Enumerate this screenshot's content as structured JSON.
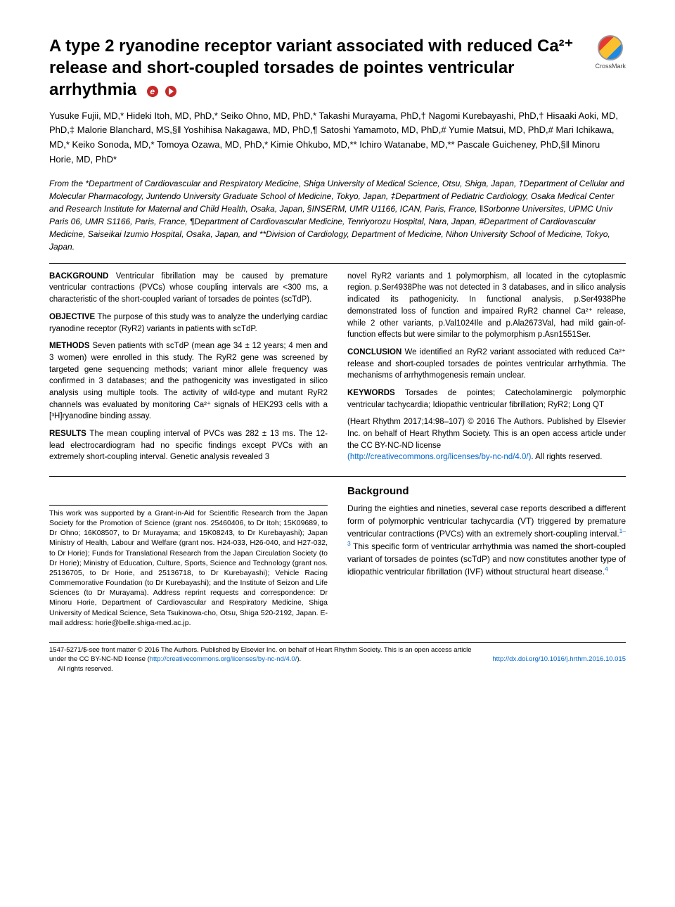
{
  "title": "A type 2 ryanodine receptor variant associated with reduced Ca²⁺ release and short-coupled torsades de pointes ventricular arrhythmia",
  "crossmark_label": "CrossMark",
  "authors_html": "Yusuke Fujii, MD,* Hideki Itoh, MD, PhD,* Seiko Ohno, MD, PhD,* Takashi Murayama, PhD,† Nagomi Kurebayashi, PhD,† Hisaaki Aoki, MD, PhD,‡ Malorie Blanchard, MS,§‖ Yoshihisa Nakagawa, MD, PhD,¶ Satoshi Yamamoto, MD, PhD,# Yumie Matsui, MD, PhD,# Mari Ichikawa, MD,* Keiko Sonoda, MD,* Tomoya Ozawa, MD, PhD,* Kimie Ohkubo, MD,** Ichiro Watanabe, MD,** Pascale Guicheney, PhD,§‖ Minoru Horie, MD, PhD*",
  "affiliations": "From the *Department of Cardiovascular and Respiratory Medicine, Shiga University of Medical Science, Otsu, Shiga, Japan, †Department of Cellular and Molecular Pharmacology, Juntendo University Graduate School of Medicine, Tokyo, Japan, ‡Department of Pediatric Cardiology, Osaka Medical Center and Research Institute for Maternal and Child Health, Osaka, Japan, §INSERM, UMR U1166, ICAN, Paris, France, ‖Sorbonne Universites, UPMC Univ Paris 06, UMR S1166, Paris, France, ¶Department of Cardiovascular Medicine, Tenriyorozu Hospital, Nara, Japan, #Department of Cardiovascular Medicine, Saiseikai Izumio Hospital, Osaka, Japan, and **Division of Cardiology, Department of Medicine, Nihon University School of Medicine, Tokyo, Japan.",
  "abstract": {
    "background": {
      "label": "BACKGROUND",
      "text": "Ventricular fibrillation may be caused by premature ventricular contractions (PVCs) whose coupling intervals are <300 ms, a characteristic of the short-coupled variant of torsades de pointes (scTdP)."
    },
    "objective": {
      "label": "OBJECTIVE",
      "text": "The purpose of this study was to analyze the underlying cardiac ryanodine receptor (RyR2) variants in patients with scTdP."
    },
    "methods": {
      "label": "METHODS",
      "text": "Seven patients with scTdP (mean age 34 ± 12 years; 4 men and 3 women) were enrolled in this study. The RyR2 gene was screened by targeted gene sequencing methods; variant minor allele frequency was confirmed in 3 databases; and the pathogenicity was investigated in silico analysis using multiple tools. The activity of wild-type and mutant RyR2 channels was evaluated by monitoring Ca²⁺ signals of HEK293 cells with a [³H]ryanodine binding assay."
    },
    "results": {
      "label": "RESULTS",
      "text": "The mean coupling interval of PVCs was 282 ± 13 ms. The 12-lead electrocardiogram had no specific findings except PVCs with an extremely short-coupling interval. Genetic analysis revealed 3"
    },
    "results2": "novel RyR2 variants and 1 polymorphism, all located in the cytoplasmic region. p.Ser4938Phe was not detected in 3 databases, and in silico analysis indicated its pathogenicity. In functional analysis, p.Ser4938Phe demonstrated loss of function and impaired RyR2 channel Ca²⁺ release, while 2 other variants, p.Val1024Ile and p.Ala2673Val, had mild gain-of-function effects but were similar to the polymorphism p.Asn1551Ser.",
    "conclusion": {
      "label": "CONCLUSION",
      "text": "We identified an RyR2 variant associated with reduced Ca²⁺ release and short-coupled torsades de pointes ventricular arrhythmia. The mechanisms of arrhythmogenesis remain unclear."
    },
    "keywords": {
      "label": "KEYWORDS",
      "text": "Torsades de pointes; Catecholaminergic polymorphic ventricular tachycardia; Idiopathic ventricular fibrillation; RyR2; Long QT"
    },
    "citation": "(Heart Rhythm 2017;14:98–107) © 2016 The Authors. Published by Elsevier Inc. on behalf of Heart Rhythm Society. This is an open access article under the CC BY-NC-ND license",
    "license_url": "(http://creativecommons.org/licenses/by-nc-nd/4.0/)",
    "rights": ". All rights reserved."
  },
  "funding": "This work was supported by a Grant-in-Aid for Scientific Research from the Japan Society for the Promotion of Science (grant nos. 25460406, to Dr Itoh; 15K09689, to Dr Ohno; 16K08507, to Dr Murayama; and 15K08243, to Dr Kurebayashi); Japan Ministry of Health, Labour and Welfare (grant nos. H24-033, H26-040, and H27-032, to Dr Horie); Funds for Translational Research from the Japan Circulation Society (to Dr Horie); Ministry of Education, Culture, Sports, Science and Technology (grant nos. 25136705, to Dr Horie, and 25136718, to Dr Kurebayashi); Vehicle Racing Commemorative Foundation (to Dr Kurebayashi); and the Institute of Seizon and Life Sciences (to Dr Murayama). Address reprint requests and correspondence: Dr Minoru Horie, Department of Cardiovascular and Respiratory Medicine, Shiga University of Medical Science, Seta Tsukinowa-cho, Otsu, Shiga 520-2192, Japan. E-mail address: horie@belle.shiga-med.ac.jp.",
  "background_section": {
    "heading": "Background",
    "text_before": "During the eighties and nineties, several case reports described a different form of polymorphic ventricular tachycardia (VT) triggered by premature ventricular contractions (PVCs) with an extremely short-coupling interval.",
    "ref1": "1–3",
    "text_mid": " This specific form of ventricular arrhythmia was named the short-coupled variant of torsades de pointes (scTdP) and now constitutes another type of idiopathic ventricular fibrillation (IVF) without structural heart disease.",
    "ref2": "4"
  },
  "footer": {
    "copyright": "1547-5271/$-see front matter © 2016 The Authors. Published by Elsevier Inc. on behalf of Heart Rhythm Society. This is an open access article under the CC BY-NC-ND license (",
    "license_url": "http://creativecommons.org/licenses/by-nc-nd/4.0/",
    "copyright_end": ").",
    "rights": "All rights reserved.",
    "doi": "http://dx.doi.org/10.1016/j.hrthm.2016.10.015"
  },
  "attach_glyph": "e",
  "colors": {
    "link": "#0066cc",
    "icon_bg": "#c62828"
  }
}
